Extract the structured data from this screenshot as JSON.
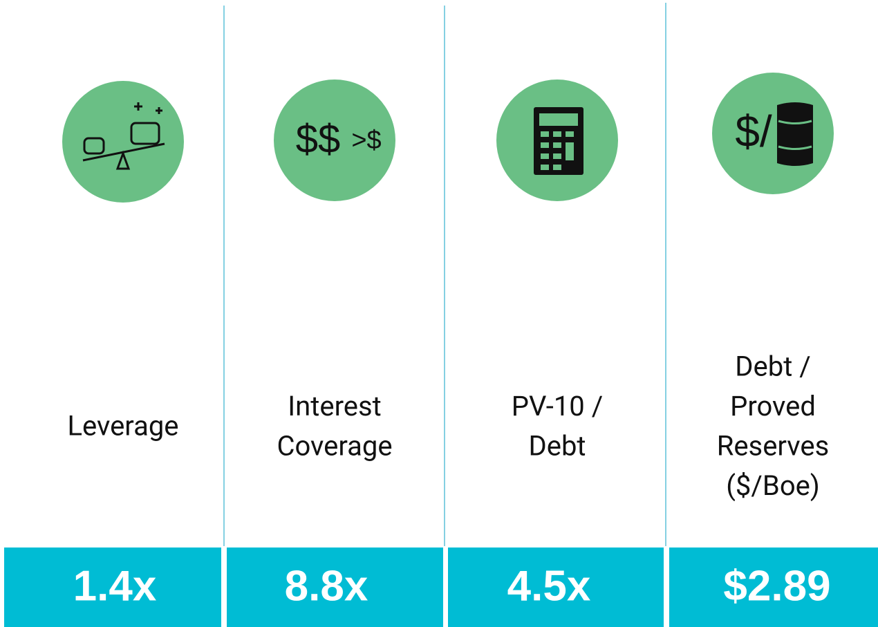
{
  "metrics": [
    {
      "label_lines": [
        "Leverage"
      ],
      "value": "1.4x"
    },
    {
      "icon_text": [
        "$$",
        ">$"
      ],
      "label_lines": [
        "Interest",
        "Coverage"
      ],
      "value": "8.8x"
    },
    {
      "label_lines": [
        "PV-10 /",
        "Debt"
      ],
      "value": "4.5x"
    },
    {
      "icon_text": [
        "$/"
      ],
      "label_lines": [
        "Debt /",
        "Proved",
        "Reserves",
        "($/Boe)"
      ],
      "value": "$2.89"
    }
  ]
}
